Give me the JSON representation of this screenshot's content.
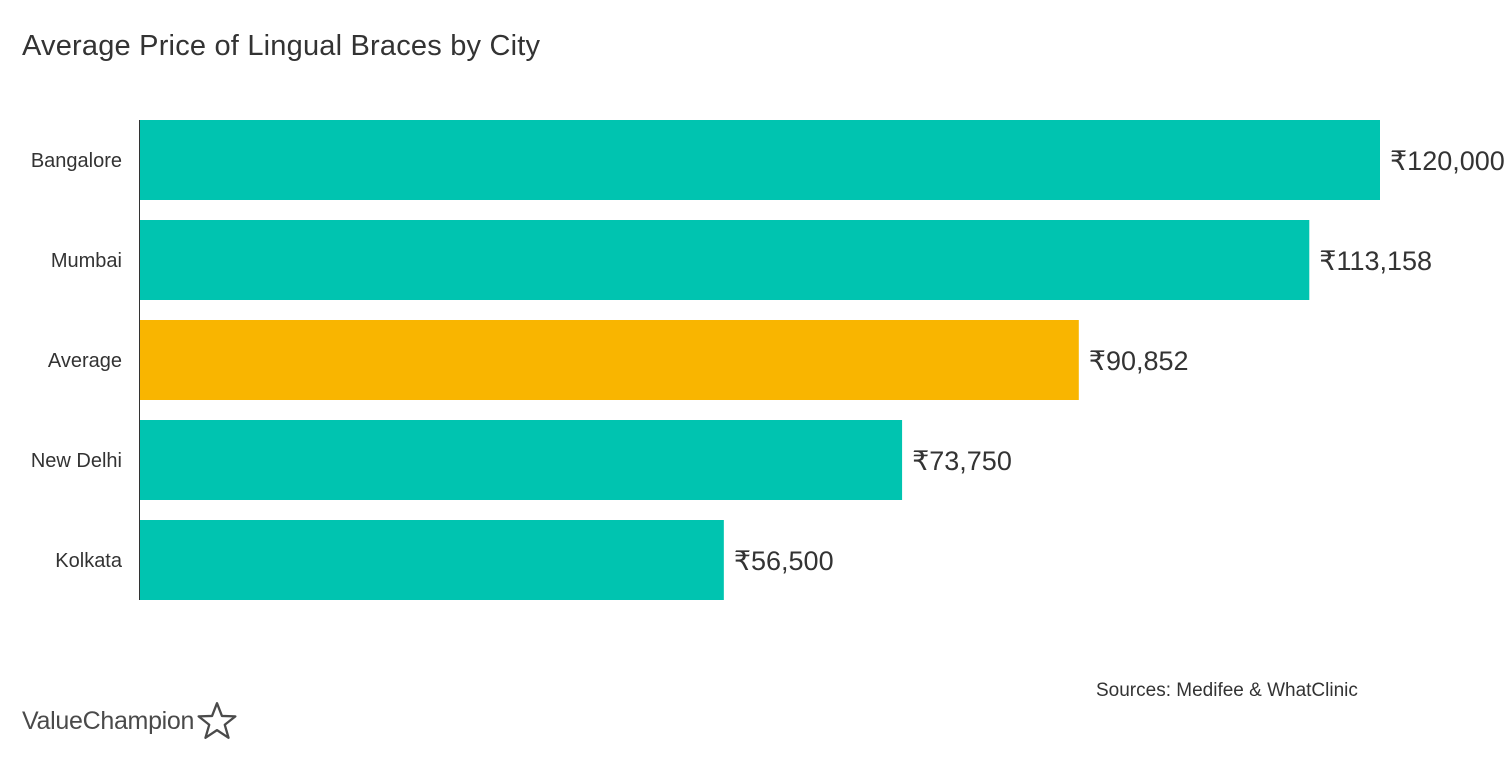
{
  "colors": {
    "default_bar": "#00c4b0",
    "highlight_bar": "#f9b500",
    "axis": "#333333",
    "text": "#333333"
  },
  "chart_data": {
    "type": "bar",
    "orientation": "horizontal",
    "title": "Average Price of Lingual Braces by City",
    "categories": [
      "Bangalore",
      "Mumbai",
      "Average",
      "New Delhi",
      "Kolkata"
    ],
    "values": [
      120000,
      113158,
      90852,
      73750,
      56500
    ],
    "value_labels": [
      "₹120,000",
      "₹113,158",
      "₹90,852",
      "₹73,750",
      "₹56,500"
    ],
    "highlight_category": "Average",
    "xlim": [
      0,
      120000
    ],
    "grid": false,
    "legend": "none"
  },
  "footer": {
    "source": "Sources: Medifee & WhatClinic",
    "brand_name": "ValueChampion",
    "brand_icon": "star-outline-icon"
  }
}
